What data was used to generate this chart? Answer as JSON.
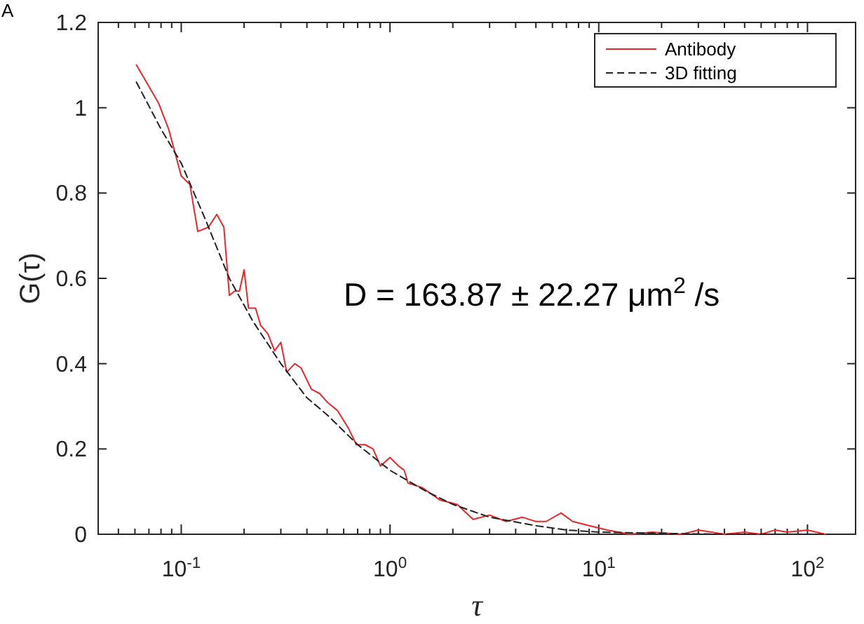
{
  "chart_data": {
    "type": "line",
    "xlabel": "τ",
    "ylabel": "G(τ)",
    "log": "x",
    "xlim": [
      0.04,
      170
    ],
    "ylim": [
      0,
      1.2
    ],
    "xticks": [
      {
        "value": 0.05,
        "label": null
      },
      {
        "value": 0.06,
        "label": null
      },
      {
        "value": 0.07,
        "label": null
      },
      {
        "value": 0.08,
        "label": null
      },
      {
        "value": 0.09,
        "label": null
      },
      {
        "value": 0.1,
        "label": "10$^{-1}$"
      },
      {
        "value": 0.2,
        "label": null
      },
      {
        "value": 0.3,
        "label": null
      },
      {
        "value": 0.4,
        "label": null
      },
      {
        "value": 0.5,
        "label": null
      },
      {
        "value": 0.6,
        "label": null
      },
      {
        "value": 0.7,
        "label": null
      },
      {
        "value": 0.8,
        "label": null
      },
      {
        "value": 0.9,
        "label": null
      },
      {
        "value": 1,
        "label": "10$^{0}$"
      },
      {
        "value": 2,
        "label": null
      },
      {
        "value": 3,
        "label": null
      },
      {
        "value": 4,
        "label": null
      },
      {
        "value": 5,
        "label": null
      },
      {
        "value": 6,
        "label": null
      },
      {
        "value": 7,
        "label": null
      },
      {
        "value": 8,
        "label": null
      },
      {
        "value": 9,
        "label": null
      },
      {
        "value": 10,
        "label": "10$^{1}$"
      },
      {
        "value": 20,
        "label": null
      },
      {
        "value": 30,
        "label": null
      },
      {
        "value": 40,
        "label": null
      },
      {
        "value": 50,
        "label": null
      },
      {
        "value": 60,
        "label": null
      },
      {
        "value": 70,
        "label": null
      },
      {
        "value": 80,
        "label": null
      },
      {
        "value": 90,
        "label": null
      },
      {
        "value": 100,
        "label": "10$^{2}$"
      }
    ],
    "yticks": [
      0,
      0.2,
      0.4,
      0.6,
      0.8,
      1,
      1.2
    ],
    "grid": false,
    "legend": "top right",
    "marker": "none",
    "series": [
      {
        "name": "Antibody",
        "color": "#e8262b",
        "line_style": "solid",
        "x": [
          0.061,
          0.07,
          0.078,
          0.087,
          0.1,
          0.11,
          0.12,
          0.135,
          0.148,
          0.16,
          0.17,
          0.18,
          0.19,
          0.2,
          0.21,
          0.227,
          0.24,
          0.26,
          0.28,
          0.3,
          0.32,
          0.35,
          0.375,
          0.42,
          0.46,
          0.5,
          0.56,
          0.63,
          0.69,
          0.76,
          0.83,
          0.9,
          1,
          1.1,
          1.17,
          1.22,
          1.42,
          1.74,
          2.1,
          2.5,
          3,
          3.6,
          4.3,
          5,
          5.6,
          6.6,
          7.5,
          9,
          11,
          14,
          18,
          25,
          30,
          40,
          50,
          60,
          70,
          80,
          100,
          122
        ],
        "values": [
          1.1,
          1.05,
          1.01,
          0.95,
          0.84,
          0.82,
          0.71,
          0.72,
          0.75,
          0.72,
          0.56,
          0.57,
          0.57,
          0.62,
          0.53,
          0.53,
          0.49,
          0.47,
          0.43,
          0.45,
          0.38,
          0.4,
          0.39,
          0.34,
          0.33,
          0.31,
          0.29,
          0.25,
          0.21,
          0.21,
          0.2,
          0.16,
          0.18,
          0.16,
          0.15,
          0.12,
          0.11,
          0.08,
          0.07,
          0.035,
          0.045,
          0.03,
          0.04,
          0.03,
          0.03,
          0.05,
          0.03,
          0.02,
          0.01,
          0.0,
          0.005,
          0.0,
          0.01,
          0.0,
          0.005,
          0.0,
          0.01,
          0.005,
          0.01,
          0.0
        ]
      },
      {
        "name": "3D fitting",
        "color": "#222222",
        "line_style": "dashed",
        "x": [
          0.061,
          0.08,
          0.1,
          0.13,
          0.17,
          0.22,
          0.3,
          0.4,
          0.5,
          0.7,
          1,
          1.5,
          2,
          3,
          5,
          7,
          10,
          20,
          40,
          70,
          122
        ],
        "values": [
          1.06,
          0.95,
          0.87,
          0.74,
          0.6,
          0.5,
          0.4,
          0.32,
          0.28,
          0.21,
          0.15,
          0.1,
          0.07,
          0.04,
          0.02,
          0.01,
          0.005,
          0.002,
          0.0,
          0.0,
          0.0
        ]
      }
    ],
    "annotations": [
      "A",
      "D = 163.87 ± 22.27 μm$^{2}$ /s"
    ]
  }
}
